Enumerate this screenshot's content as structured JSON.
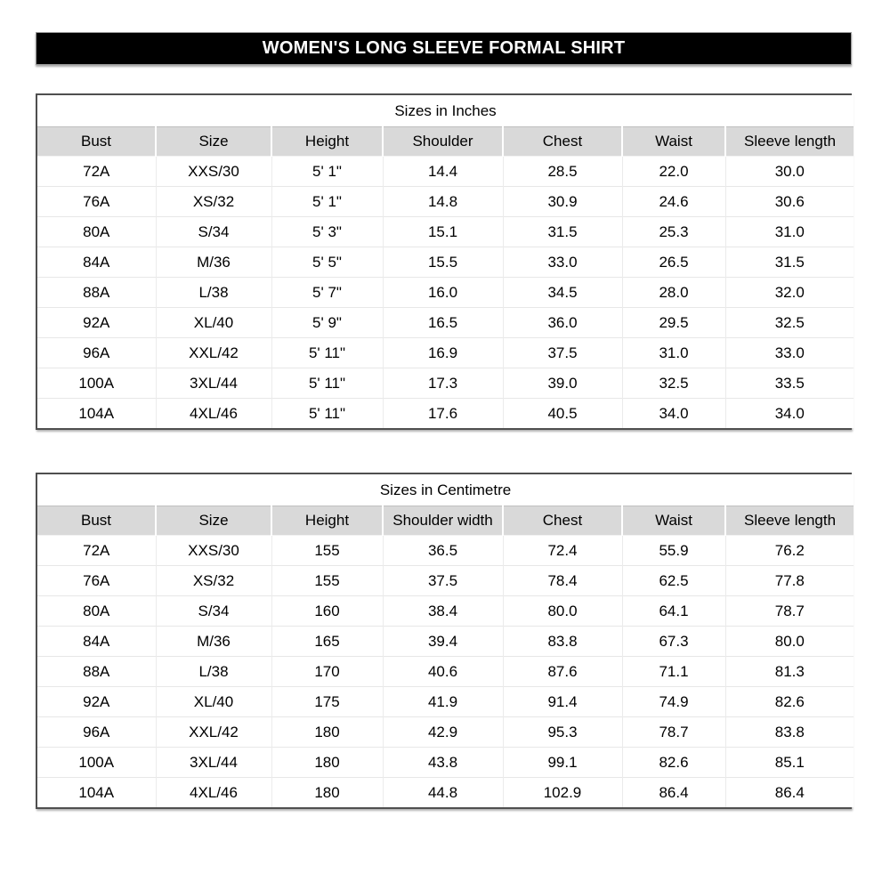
{
  "page": {
    "title": "WOMEN'S LONG SLEEVE FORMAL SHIRT",
    "colors": {
      "banner_bg": "#000000",
      "banner_text": "#ffffff",
      "header_row_bg": "#d9d9d9",
      "table_border": "#4f4f4f",
      "grid_line": "#e7e7e7",
      "page_bg": "#ffffff",
      "text": "#000000"
    }
  },
  "tables": [
    {
      "title": "Sizes in Inches",
      "columns": [
        "Bust",
        "Size",
        "Height",
        "Shoulder",
        "Chest",
        "Waist",
        "Sleeve length"
      ],
      "rows": [
        [
          "72A",
          "XXS/30",
          "5' 1\"",
          "14.4",
          "28.5",
          "22.0",
          "30.0"
        ],
        [
          "76A",
          "XS/32",
          "5' 1\"",
          "14.8",
          "30.9",
          "24.6",
          "30.6"
        ],
        [
          "80A",
          "S/34",
          "5' 3\"",
          "15.1",
          "31.5",
          "25.3",
          "31.0"
        ],
        [
          "84A",
          "M/36",
          "5' 5\"",
          "15.5",
          "33.0",
          "26.5",
          "31.5"
        ],
        [
          "88A",
          "L/38",
          "5' 7\"",
          "16.0",
          "34.5",
          "28.0",
          "32.0"
        ],
        [
          "92A",
          "XL/40",
          "5' 9\"",
          "16.5",
          "36.0",
          "29.5",
          "32.5"
        ],
        [
          "96A",
          "XXL/42",
          "5' 11\"",
          "16.9",
          "37.5",
          "31.0",
          "33.0"
        ],
        [
          "100A",
          "3XL/44",
          "5' 11\"",
          "17.3",
          "39.0",
          "32.5",
          "33.5"
        ],
        [
          "104A",
          "4XL/46",
          "5' 11\"",
          "17.6",
          "40.5",
          "34.0",
          "34.0"
        ]
      ]
    },
    {
      "title": "Sizes in Centimetre",
      "columns": [
        "Bust",
        "Size",
        "Height",
        "Shoulder width",
        "Chest",
        "Waist",
        "Sleeve length"
      ],
      "rows": [
        [
          "72A",
          "XXS/30",
          "155",
          "36.5",
          "72.4",
          "55.9",
          "76.2"
        ],
        [
          "76A",
          "XS/32",
          "155",
          "37.5",
          "78.4",
          "62.5",
          "77.8"
        ],
        [
          "80A",
          "S/34",
          "160",
          "38.4",
          "80.0",
          "64.1",
          "78.7"
        ],
        [
          "84A",
          "M/36",
          "165",
          "39.4",
          "83.8",
          "67.3",
          "80.0"
        ],
        [
          "88A",
          "L/38",
          "170",
          "40.6",
          "87.6",
          "71.1",
          "81.3"
        ],
        [
          "92A",
          "XL/40",
          "175",
          "41.9",
          "91.4",
          "74.9",
          "82.6"
        ],
        [
          "96A",
          "XXL/42",
          "180",
          "42.9",
          "95.3",
          "78.7",
          "83.8"
        ],
        [
          "100A",
          "3XL/44",
          "180",
          "43.8",
          "99.1",
          "82.6",
          "85.1"
        ],
        [
          "104A",
          "4XL/46",
          "180",
          "44.8",
          "102.9",
          "86.4",
          "86.4"
        ]
      ]
    }
  ]
}
